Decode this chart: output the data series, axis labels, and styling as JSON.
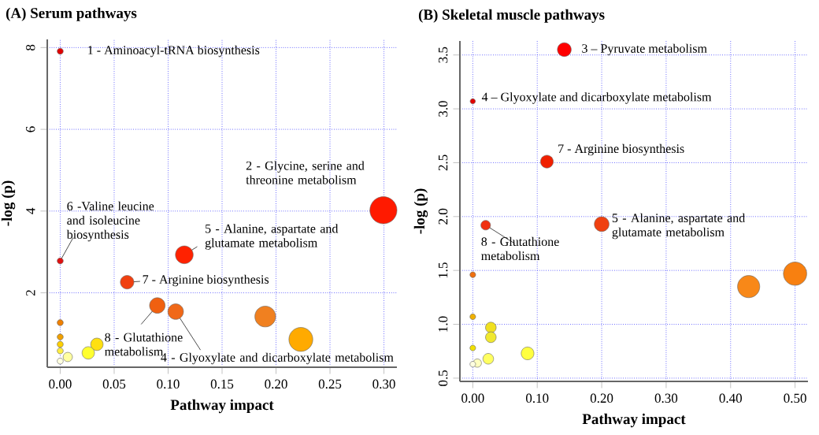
{
  "chart_data": [
    {
      "type": "bubble",
      "title": "(A) Serum pathways",
      "xlabel": "Pathway impact",
      "ylabel": "-log (p)",
      "grid": true,
      "xlim": [
        -0.012,
        0.312
      ],
      "ylim": [
        0.18,
        8.2
      ],
      "xticks": [
        {
          "value": 0,
          "label": "0.00"
        },
        {
          "value": 0.05,
          "label": "0.05"
        },
        {
          "value": 0.1,
          "label": "0.10"
        },
        {
          "value": 0.15,
          "label": "0.15"
        },
        {
          "value": 0.2,
          "label": "0.20"
        },
        {
          "value": 0.25,
          "label": "0.25"
        },
        {
          "value": 0.3,
          "label": "0.30"
        }
      ],
      "yticks": [
        2,
        4,
        6,
        8
      ],
      "x": [
        0,
        0.2995,
        0.115,
        0,
        0.062,
        0.09,
        0.107,
        0.19,
        0.223,
        0.034,
        0.026,
        0.007,
        0,
        0,
        0,
        0,
        0
      ],
      "values": [
        7.91,
        4.02,
        2.93,
        2.78,
        2.26,
        1.69,
        1.54,
        1.42,
        0.86,
        0.74,
        0.53,
        0.43,
        1.27,
        0.92,
        0.74,
        0.58,
        0.33
      ],
      "sizes": [
        0.05,
        1,
        0.43,
        0.05,
        0.25,
        0.33,
        0.33,
        0.59,
        0.78,
        0.21,
        0.21,
        0.12,
        0.05,
        0.05,
        0.05,
        0.05,
        0.05
      ],
      "colors": [
        "#e00000",
        "#ff1a00",
        "#ff2200",
        "#e01010",
        "#f04010",
        "#f06010",
        "#f06818",
        "#f08020",
        "#ffaa00",
        "#ffe010",
        "#ffff30",
        "#ffffa0",
        "#f08000",
        "#f0a000",
        "#ffd000",
        "#ffee40",
        "#ffffe0"
      ],
      "annotations": [
        {
          "text": "1 - Aminoacyl-tRNA biosynthesis",
          "x": 0,
          "y": 7.91
        },
        {
          "text": "2 - Glycine, serine and threonine metabolism",
          "x": 0.2995,
          "y": 4.02
        },
        {
          "text": "5 - Alanine, aspartate and glutamate metabolism",
          "x": 0.115,
          "y": 2.93
        },
        {
          "text": "6 -Valine leucine and isoleucine biosynthesis",
          "x": 0,
          "y": 2.78
        },
        {
          "text": "7 - Arginine biosynthesis",
          "x": 0.062,
          "y": 2.26
        },
        {
          "text": "8 - Glutathione metabolism",
          "x": 0.09,
          "y": 1.69
        },
        {
          "text": "4 - Glyoxylate and dicarboxylate metabolism",
          "x": 0.107,
          "y": 1.54
        }
      ]
    },
    {
      "type": "bubble",
      "title": "(B) Skeletal muscle pathways",
      "xlabel": "Pathway impact",
      "ylabel": "-log (p)",
      "grid": true,
      "xlim": [
        -0.02,
        0.52
      ],
      "ylim": [
        0.47,
        3.63
      ],
      "xticks": [
        {
          "value": 0,
          "label": "0.00"
        },
        {
          "value": 0.1,
          "label": "0.10"
        },
        {
          "value": 0.2,
          "label": "0.20"
        },
        {
          "value": 0.3,
          "label": "0.30"
        },
        {
          "value": 0.4,
          "label": "0.40"
        },
        {
          "value": 0.5,
          "label": "0.50"
        }
      ],
      "yticks": [
        0.5,
        {
          "value": 1,
          "label": "1.0"
        },
        1.5,
        {
          "value": 2,
          "label": "2.0"
        },
        2.5,
        {
          "value": 3,
          "label": "3.0"
        },
        3.5
      ],
      "x": [
        0.142,
        0,
        0.115,
        0.02,
        0.2,
        0,
        0.5,
        0.428,
        0,
        0.028,
        0.028,
        0.085,
        0.024,
        0,
        0.007,
        0
      ],
      "values": [
        3.55,
        3.07,
        2.51,
        1.92,
        1.93,
        1.46,
        1.47,
        1.35,
        1.07,
        0.97,
        0.88,
        0.73,
        0.68,
        0.78,
        0.64,
        0.63
      ],
      "sizes": [
        0.35,
        0.05,
        0.3,
        0.17,
        0.4,
        0.06,
        1,
        0.91,
        0.06,
        0.21,
        0.21,
        0.3,
        0.21,
        0.06,
        0.13,
        0.06
      ],
      "colors": [
        "#ff0000",
        "#e00000",
        "#f02000",
        "#f03010",
        "#f04010",
        "#f07010",
        "#f88010",
        "#f88818",
        "#f0b000",
        "#f0e020",
        "#f0e830",
        "#ffff40",
        "#ffff60",
        "#f0e000",
        "#ffffc0",
        "#ffffe0"
      ],
      "annotations": [
        {
          "text": "3 – Pyruvate metabolism",
          "x": 0.142,
          "y": 3.55
        },
        {
          "text": "4 – Glyoxylate and dicarboxylate metabolism",
          "x": 0,
          "y": 3.07
        },
        {
          "text": "7 - Arginine biosynthesis",
          "x": 0.115,
          "y": 2.51
        },
        {
          "text": "5 - Alanine, aspartate and glutamate metabolism",
          "x": 0.2,
          "y": 1.93
        },
        {
          "text": "8 - Glutathione metabolism",
          "x": 0.02,
          "y": 1.92
        }
      ]
    }
  ]
}
